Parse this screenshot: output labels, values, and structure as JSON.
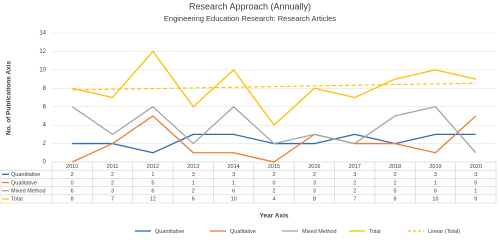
{
  "chart_data": {
    "type": "line",
    "title": "Research Approach (Annually)",
    "subtitle": "Engineering Education Research: Research Articles",
    "y_label": "No. of Publications Axis",
    "x_label": "Year Axis",
    "categories": [
      "2010",
      "2011",
      "2012",
      "2013",
      "2014",
      "2015",
      "2016",
      "2017",
      "2018",
      "2019",
      "2020"
    ],
    "series": [
      {
        "name": "Quantitative",
        "color": "#2e6db4",
        "values": [
          2,
          2,
          1,
          3,
          3,
          2,
          2,
          3,
          2,
          3,
          3
        ]
      },
      {
        "name": "Qualitative",
        "color": "#ed7d31",
        "values": [
          0,
          2,
          5,
          1,
          1,
          0,
          3,
          2,
          2,
          1,
          5
        ]
      },
      {
        "name": "Mixed Method",
        "color": "#a5a5a5",
        "values": [
          6,
          3,
          6,
          2,
          6,
          2,
          3,
          2,
          5,
          6,
          1
        ]
      },
      {
        "name": "Total",
        "color": "#ffc000",
        "values": [
          8,
          7,
          12,
          6,
          10,
          4,
          8,
          7,
          9,
          10,
          9
        ]
      }
    ],
    "trendline": {
      "name": "Linear (Total)",
      "color": "#ffc000",
      "x": [
        "2010",
        "2020"
      ],
      "values": [
        7.82,
        8.55
      ]
    },
    "ylim": [
      0,
      14
    ],
    "yticks": [
      0,
      2,
      4,
      6,
      8,
      10,
      12,
      14
    ],
    "grid": true
  }
}
